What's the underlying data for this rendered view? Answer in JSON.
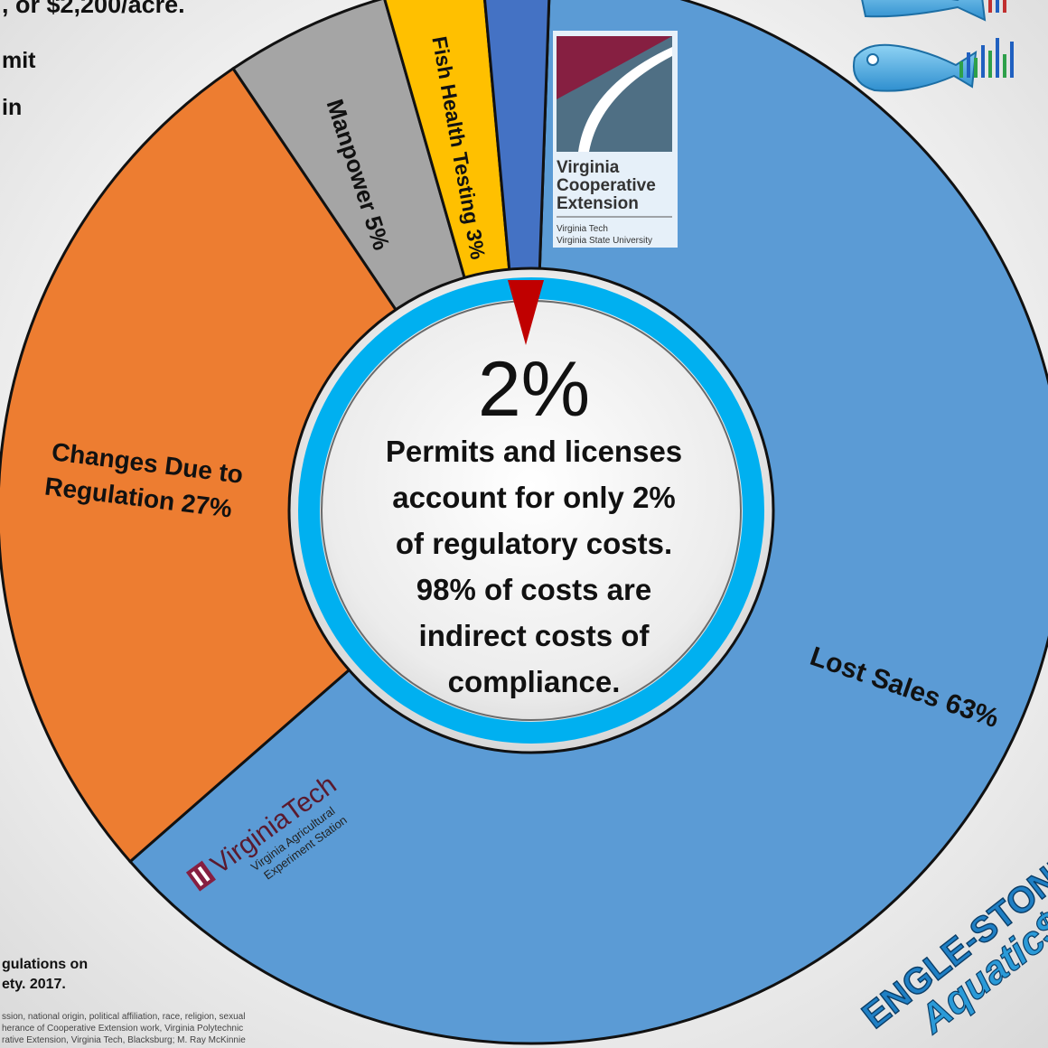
{
  "top_fragments": {
    "line1": ", or $2,200/acre.",
    "line2": "mit",
    "line3": "in"
  },
  "bottom_fragments": {
    "line1": "gulations on",
    "line2": "ety. 2017.",
    "foot1": "ssion, national origin, political affiliation, race, religion, sexual",
    "foot2": "herance of Cooperative Extension work, Virginia Polytechnic",
    "foot3": "rative Extension, Virginia Tech, Blacksburg; M. Ray McKinnie"
  },
  "center": {
    "big_percent": "2%",
    "lines": [
      "Permits and licenses",
      "account for only 2%",
      "of regulatory costs.",
      "98% of costs are",
      "indirect costs of",
      "compliance."
    ]
  },
  "chart_data": {
    "type": "pie",
    "style": "donut",
    "categories": [
      "Lost Sales",
      "Changes Due to Regulation",
      "Manpower",
      "Fish Health Testing",
      "Permits and licenses"
    ],
    "values": [
      63,
      27,
      5,
      3,
      2
    ],
    "labels": {
      "lost_sales": "Lost Sales 63%",
      "changes_1": "Changes Due to",
      "changes_2": "Regulation 27%",
      "manpower": "Manpower 5%",
      "fish_health": "Fish Health Testing 3%"
    },
    "colors": [
      "#5b9bd5",
      "#ed7d31",
      "#a5a5a5",
      "#ffc000",
      "#4472c4"
    ],
    "start": "12 o'clock",
    "direction": "clockwise"
  },
  "logos": {
    "vce": {
      "line1": "Virginia",
      "line2": "Cooperative",
      "line3": "Extension",
      "sub1": "Virginia Tech",
      "sub2": "Virginia State University"
    },
    "vt": {
      "name": "VirginiaTech",
      "sub1": "Virginia Agricultural",
      "sub2": "Experiment Station"
    },
    "esa": {
      "line1": "ENGLE-STONE",
      "line2": "Aquatic$"
    }
  },
  "icons": [
    "fish-chart-icon"
  ]
}
